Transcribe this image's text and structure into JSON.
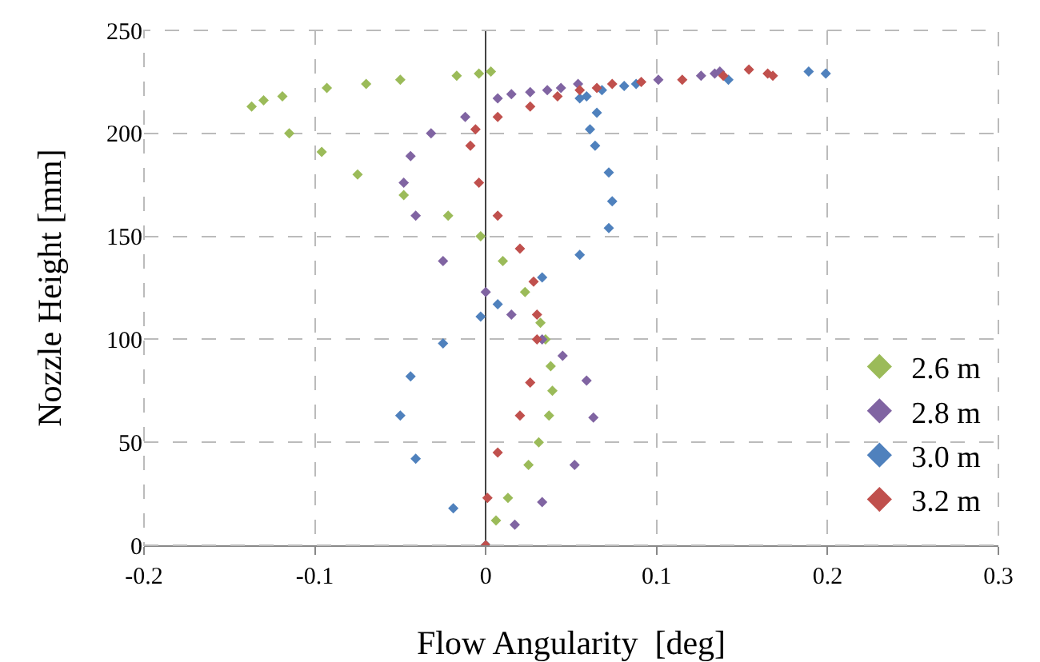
{
  "chart_data": {
    "type": "scatter",
    "xlabel": "Flow Angularity  [deg]",
    "ylabel": "Nozzle Height [mm]",
    "xlim": [
      -0.2,
      0.3
    ],
    "xticks": [
      -0.2,
      -0.1,
      0,
      0.1,
      0.2,
      0.3
    ],
    "ylim": [
      0,
      250
    ],
    "yticks": [
      0,
      50,
      100,
      150,
      200,
      250
    ],
    "grid": true,
    "legend": "bottom right",
    "marker": "diamond",
    "series": [
      {
        "name": "2.6 m",
        "color": "#9bbb59",
        "x": [
          0,
          0.006,
          0.013,
          0.025,
          0.031,
          0.037,
          0.039,
          0.038,
          0.035,
          0.032,
          0.023,
          0.01,
          -0.003,
          -0.022,
          -0.048,
          -0.075,
          -0.096,
          -0.115,
          -0.137,
          -0.13,
          -0.119,
          -0.093,
          -0.07,
          -0.05,
          -0.017,
          -0.004,
          0.003
        ],
        "values": [
          0,
          12,
          23,
          39,
          50,
          63,
          75,
          87,
          100,
          108,
          123,
          138,
          150,
          160,
          170,
          180,
          191,
          200,
          213,
          216,
          218,
          222,
          224,
          226,
          228,
          229,
          230
        ]
      },
      {
        "name": "2.8 m",
        "color": "#8064a2",
        "x": [
          0,
          0.017,
          0.033,
          0.052,
          0.063,
          0.059,
          0.045,
          0.033,
          0.015,
          0,
          -0.025,
          -0.041,
          -0.048,
          -0.044,
          -0.032,
          -0.012,
          0.007,
          0.015,
          0.026,
          0.036,
          0.044,
          0.054,
          0.101,
          0.126,
          0.134,
          0.137
        ],
        "values": [
          0,
          10,
          21,
          39,
          62,
          80,
          92,
          100,
          112,
          123,
          138,
          160,
          176,
          189,
          200,
          208,
          217,
          219,
          220,
          221,
          222,
          224,
          226,
          228,
          229,
          230
        ]
      },
      {
        "name": "3.0 m",
        "color": "#4f81bd",
        "x": [
          0,
          -0.019,
          -0.041,
          -0.05,
          -0.044,
          -0.025,
          -0.003,
          0.007,
          0.033,
          0.055,
          0.072,
          0.074,
          0.072,
          0.064,
          0.061,
          0.065,
          0.055,
          0.059,
          0.068,
          0.081,
          0.088,
          0.142,
          0.189,
          0.199
        ],
        "values": [
          0,
          18,
          42,
          63,
          82,
          98,
          111,
          117,
          130,
          141,
          154,
          167,
          181,
          194,
          202,
          210,
          217,
          218,
          221,
          223,
          224,
          226,
          230,
          229
        ]
      },
      {
        "name": "3.2 m",
        "color": "#c0504d",
        "x": [
          0,
          0.001,
          0.007,
          0.02,
          0.026,
          0.03,
          0.03,
          0.028,
          0.02,
          0.007,
          -0.004,
          -0.009,
          -0.006,
          0.007,
          0.026,
          0.042,
          0.055,
          0.065,
          0.074,
          0.091,
          0.115,
          0.139,
          0.154,
          0.165,
          0.168
        ],
        "values": [
          0,
          23,
          45,
          63,
          79,
          100,
          112,
          128,
          144,
          160,
          176,
          194,
          202,
          208,
          213,
          218,
          221,
          222,
          224,
          225,
          226,
          228,
          231,
          229,
          228
        ]
      }
    ]
  }
}
